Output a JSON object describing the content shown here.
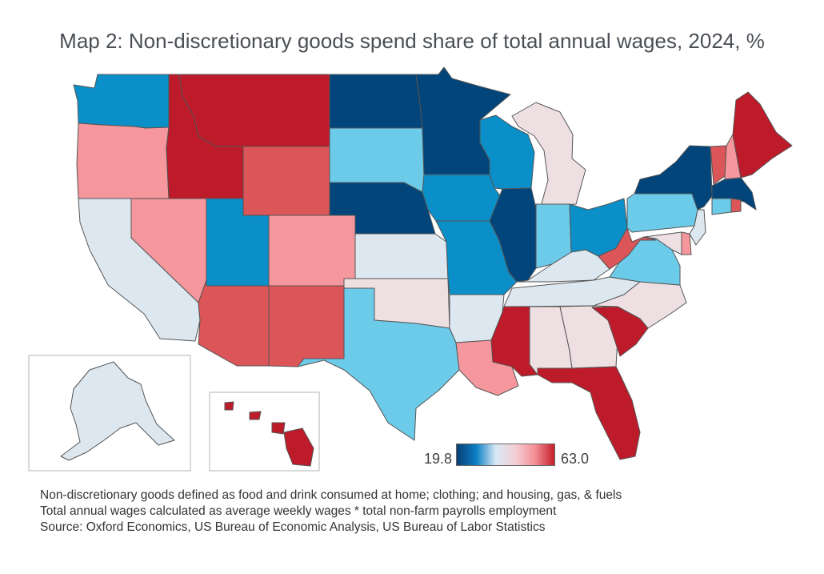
{
  "title": "Map 2: Non-discretionary goods spend share of total annual wages, 2024, %",
  "legend": {
    "min": "19.8",
    "max": "63.0",
    "colors": [
      "#0a3d75",
      "#0a7fc4",
      "#d9e9f5",
      "#f4cfd6",
      "#f48f97",
      "#c41e2a"
    ]
  },
  "palette": {
    "very_low": "#02457a",
    "low": "#0a8fc8",
    "mid_low": "#6dcbea",
    "neutral_blue": "#dce7f0",
    "neutral_pink": "#eedfe3",
    "mid_high": "#f5979c",
    "high": "#dc5558",
    "very_high": "#be1b2a"
  },
  "states": {
    "WA": "low",
    "OR": "mid_high",
    "CA": "neutral_blue",
    "ID": "very_high",
    "NV": "mid_high",
    "MT": "very_high",
    "WY": "high",
    "UT": "low",
    "AZ": "high",
    "CO": "mid_high",
    "NM": "high",
    "ND": "very_low",
    "SD": "mid_low",
    "NE": "very_low",
    "KS": "neutral_blue",
    "OK": "neutral_pink",
    "TX": "mid_low",
    "MN": "very_low",
    "IA": "low",
    "MO": "low",
    "AR": "neutral_blue",
    "LA": "mid_high",
    "WI": "low",
    "IL": "very_low",
    "MI": "neutral_pink",
    "IN": "mid_low",
    "OH": "low",
    "KY": "neutral_blue",
    "TN": "neutral_blue",
    "MS": "very_high",
    "AL": "neutral_pink",
    "GA": "neutral_pink",
    "FL": "very_high",
    "SC": "very_high",
    "NC": "neutral_pink",
    "VA": "mid_low",
    "WV": "high",
    "PA": "mid_low",
    "NY": "very_low",
    "VT": "high",
    "NH": "mid_high",
    "ME": "very_high",
    "MA": "very_low",
    "CT": "mid_low",
    "RI": "high",
    "NJ": "neutral_blue",
    "DE": "mid_high",
    "MD": "neutral_pink",
    "AK": "neutral_blue",
    "HI": "very_high"
  },
  "notes": [
    "Non-discretionary goods defined as food and drink consumed at home; clothing; and housing, gas, & fuels",
    "Total annual wages calculated as average weekly wages * total non-farm payrolls employment",
    "Source: Oxford Economics, US Bureau of Economic Analysis, US Bureau of Labor Statistics"
  ]
}
